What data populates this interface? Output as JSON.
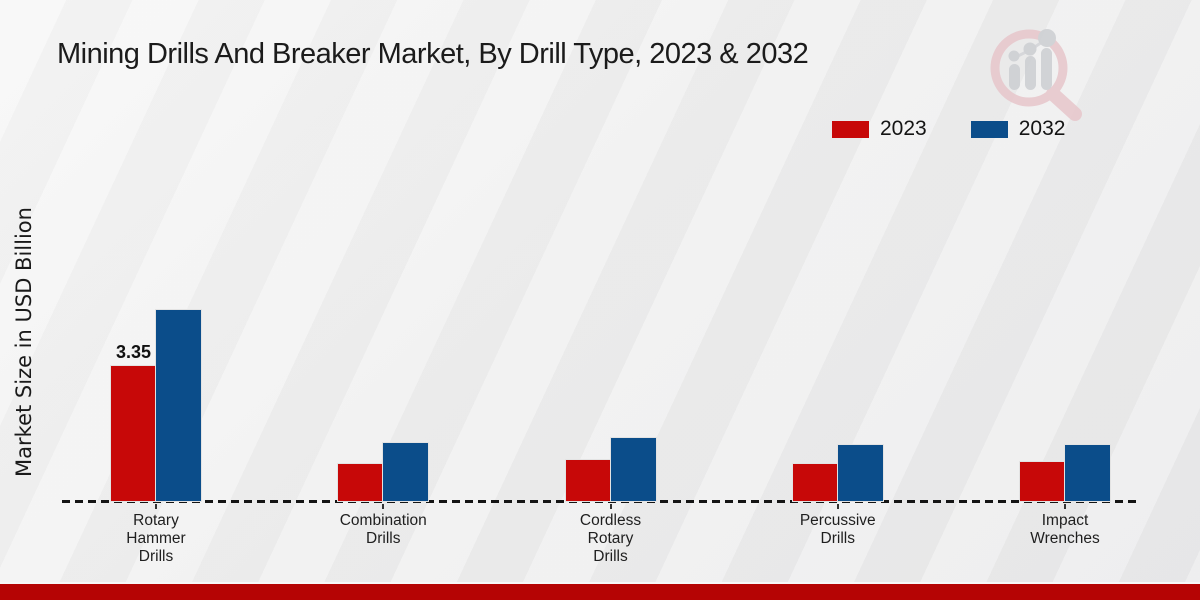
{
  "title": "Mining Drills And Breaker Market, By Drill Type, 2023 & 2032",
  "ylabel": "Market Size in USD Billion",
  "legend": {
    "items": [
      {
        "label": "2023",
        "color": "#c70808"
      },
      {
        "label": "2032",
        "color": "#0b4d8a"
      }
    ]
  },
  "chart_data": {
    "type": "bar",
    "title": "Mining Drills And Breaker Market, By Drill Type, 2023 & 2032",
    "xlabel": "",
    "ylabel": "Market Size in USD Billion",
    "categories": [
      "Rotary Hammer Drills",
      "Combination Drills",
      "Cordless Rotary Drills",
      "Percussive Drills",
      "Impact Wrenches"
    ],
    "series": [
      {
        "name": "2023",
        "color": "#c70808",
        "values": [
          3.35,
          0.92,
          1.02,
          0.93,
          0.97
        ]
      },
      {
        "name": "2032",
        "color": "#0b4d8a",
        "values": [
          4.74,
          1.43,
          1.56,
          1.4,
          1.39
        ]
      }
    ],
    "annotations": [
      {
        "series_index": 0,
        "category_index": 0,
        "text": "3.35"
      }
    ],
    "ylim": [
      0,
      5.2
    ],
    "grid": false,
    "legend_position": "top-right",
    "x_axis_style": "dashed-baseline"
  },
  "footer": {
    "bar_color": "#b50404"
  },
  "logo": {
    "name": "market-research-future-watermark"
  }
}
